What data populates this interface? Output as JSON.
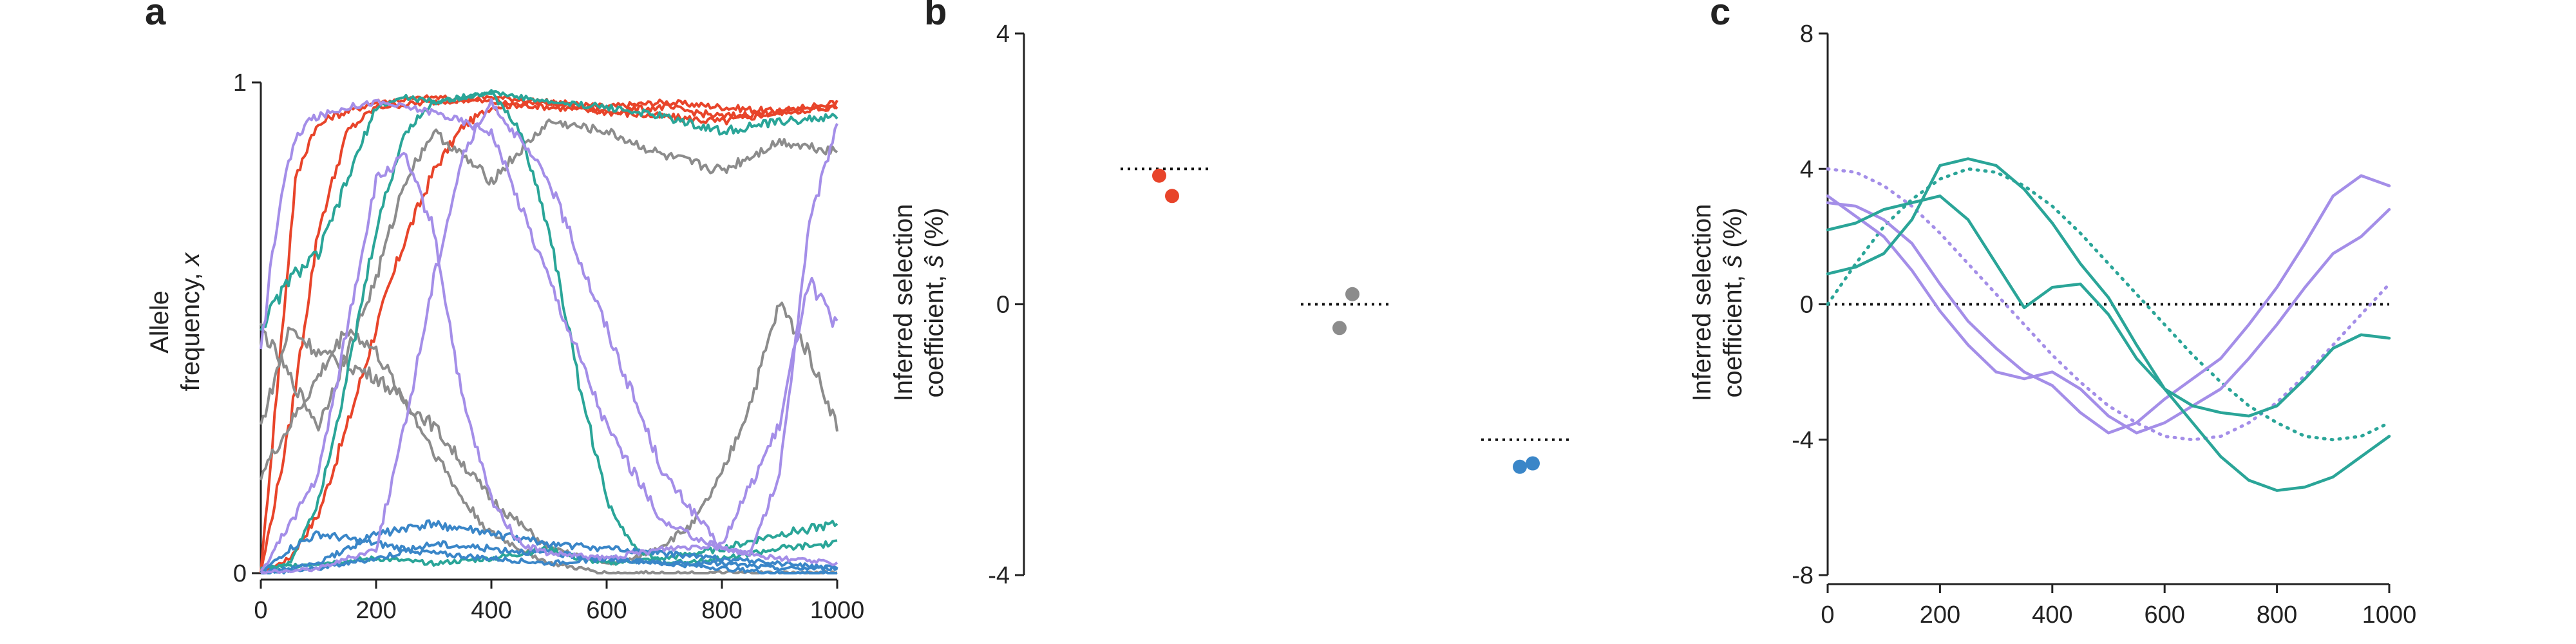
{
  "colors": {
    "red": "#e8442a",
    "gray": "#8c8c8c",
    "blue": "#3a86c8",
    "teal": "#2aa598",
    "purple": "#a48ee8",
    "axis": "#222222"
  },
  "chart_data": [
    {
      "panel": "a",
      "type": "line",
      "ylabel_lines": [
        "Allele",
        "frequency, "
      ],
      "ylabel_var": "x",
      "xlim": [
        0,
        1000
      ],
      "ylim": [
        0,
        1
      ],
      "xticks": [
        "0",
        "200",
        "400",
        "600",
        "800",
        "1000"
      ],
      "yticks": [
        "0",
        "1"
      ],
      "series": [
        {
          "color": "red",
          "x": [
            0,
            50,
            100,
            150,
            200,
            250,
            300,
            350,
            400,
            500,
            600,
            700,
            800,
            900,
            1000
          ],
          "y": [
            0.0,
            0.03,
            0.12,
            0.3,
            0.5,
            0.68,
            0.82,
            0.91,
            0.95,
            0.96,
            0.95,
            0.96,
            0.95,
            0.94,
            0.95
          ]
        },
        {
          "color": "red",
          "x": [
            0,
            30,
            60,
            90,
            120,
            150,
            200,
            300,
            400,
            500,
            600,
            700,
            800,
            900,
            1000
          ],
          "y": [
            0.0,
            0.4,
            0.8,
            0.9,
            0.93,
            0.94,
            0.96,
            0.97,
            0.96,
            0.95,
            0.94,
            0.93,
            0.92,
            0.94,
            0.95
          ]
        },
        {
          "color": "red",
          "x": [
            0,
            50,
            100,
            150,
            200,
            300,
            400,
            500,
            600,
            700,
            800,
            900,
            1000
          ],
          "y": [
            0.0,
            0.3,
            0.7,
            0.9,
            0.95,
            0.96,
            0.97,
            0.96,
            0.94,
            0.95,
            0.93,
            0.94,
            0.96
          ]
        },
        {
          "color": "gray",
          "x": [
            0,
            50,
            100,
            200,
            300,
            400,
            500,
            600,
            650,
            700,
            750,
            800,
            850,
            900,
            950,
            1000
          ],
          "y": [
            0.3,
            0.5,
            0.45,
            0.4,
            0.3,
            0.15,
            0.05,
            0.02,
            0.03,
            0.06,
            0.1,
            0.2,
            0.35,
            0.55,
            0.45,
            0.3
          ]
        },
        {
          "color": "gray",
          "x": [
            0,
            50,
            100,
            150,
            200,
            250,
            300,
            350,
            400,
            500,
            600,
            700,
            800,
            900,
            1000
          ],
          "y": [
            0.5,
            0.4,
            0.3,
            0.45,
            0.6,
            0.8,
            0.9,
            0.85,
            0.8,
            0.92,
            0.9,
            0.85,
            0.82,
            0.88,
            0.86
          ]
        },
        {
          "color": "gray",
          "x": [
            0,
            50,
            100,
            150,
            200,
            250,
            300,
            350,
            400,
            450,
            500,
            550,
            600
          ],
          "y": [
            0.2,
            0.3,
            0.4,
            0.5,
            0.45,
            0.35,
            0.25,
            0.15,
            0.08,
            0.05,
            0.02,
            0.01,
            0.0
          ]
        },
        {
          "color": "teal",
          "x": [
            0,
            50,
            100,
            150,
            200,
            250,
            300,
            400,
            450,
            500,
            550,
            600,
            650,
            700,
            800,
            900,
            1000
          ],
          "y": [
            0.5,
            0.6,
            0.65,
            0.8,
            0.95,
            0.97,
            0.96,
            0.98,
            0.9,
            0.7,
            0.4,
            0.15,
            0.05,
            0.02,
            0.03,
            0.05,
            0.06
          ]
        },
        {
          "color": "teal",
          "x": [
            0,
            50,
            100,
            150,
            200,
            250,
            300,
            400,
            500,
            600,
            650,
            700,
            800,
            900,
            1000
          ],
          "y": [
            0.0,
            0.02,
            0.15,
            0.4,
            0.7,
            0.9,
            0.96,
            0.98,
            0.96,
            0.95,
            0.94,
            0.93,
            0.9,
            0.92,
            0.93
          ]
        },
        {
          "color": "teal",
          "x": [
            0,
            100,
            200,
            300,
            400,
            500,
            550,
            600,
            700,
            800,
            900,
            1000
          ],
          "y": [
            0.01,
            0.02,
            0.03,
            0.02,
            0.03,
            0.05,
            0.03,
            0.02,
            0.03,
            0.05,
            0.08,
            0.1
          ]
        },
        {
          "color": "blue",
          "x": [
            0,
            100,
            150,
            200,
            300,
            400,
            500,
            600,
            700,
            800,
            900,
            1000
          ],
          "y": [
            0.0,
            0.02,
            0.05,
            0.08,
            0.1,
            0.08,
            0.06,
            0.05,
            0.04,
            0.03,
            0.02,
            0.01
          ]
        },
        {
          "color": "blue",
          "x": [
            0,
            100,
            200,
            300,
            400,
            500,
            600,
            700,
            800,
            900,
            1000
          ],
          "y": [
            0.0,
            0.01,
            0.03,
            0.06,
            0.05,
            0.04,
            0.03,
            0.02,
            0.02,
            0.01,
            0.01
          ]
        },
        {
          "color": "blue",
          "x": [
            0,
            50,
            100,
            200,
            300,
            400,
            500,
            600,
            700,
            800,
            900,
            1000
          ],
          "y": [
            0.0,
            0.05,
            0.08,
            0.06,
            0.04,
            0.03,
            0.02,
            0.03,
            0.02,
            0.01,
            0.0,
            0.0
          ]
        },
        {
          "color": "purple",
          "x": [
            0,
            20,
            40,
            60,
            80,
            100,
            150,
            200,
            250,
            300,
            400,
            500,
            600,
            700,
            800,
            900,
            1000
          ],
          "y": [
            0.45,
            0.65,
            0.8,
            0.88,
            0.92,
            0.93,
            0.95,
            0.96,
            0.95,
            0.94,
            0.9,
            0.6,
            0.3,
            0.1,
            0.05,
            0.03,
            0.02
          ]
        },
        {
          "color": "purple",
          "x": [
            0,
            100,
            150,
            200,
            250,
            300,
            350,
            400,
            450,
            500,
            600,
            700,
            800,
            900,
            950,
            1000
          ],
          "y": [
            0.0,
            0.2,
            0.5,
            0.8,
            0.85,
            0.7,
            0.35,
            0.15,
            0.06,
            0.04,
            0.03,
            0.05,
            0.06,
            0.3,
            0.6,
            0.5
          ]
        },
        {
          "color": "purple",
          "x": [
            0,
            100,
            200,
            250,
            300,
            350,
            400,
            500,
            600,
            700,
            800,
            850,
            900,
            950,
            1000
          ],
          "y": [
            0.0,
            0.01,
            0.05,
            0.3,
            0.6,
            0.85,
            0.96,
            0.8,
            0.5,
            0.2,
            0.05,
            0.04,
            0.2,
            0.7,
            0.92
          ]
        }
      ]
    },
    {
      "panel": "b",
      "type": "scatter",
      "ylabel_lines": [
        "Inferred selection",
        "coefficient, "
      ],
      "ylabel_var": "ŝ",
      "ylabel_suffix": " (%)",
      "ylim": [
        -4,
        4
      ],
      "yticks": [
        "4",
        "0",
        "-4"
      ],
      "groups": [
        {
          "color": "red",
          "true_value": 2.0,
          "points": [
            1.9,
            1.6
          ]
        },
        {
          "color": "gray",
          "true_value": 0.0,
          "points": [
            -0.35,
            0.15
          ]
        },
        {
          "color": "blue",
          "true_value": -2.0,
          "points": [
            -2.4,
            -2.35
          ]
        }
      ]
    },
    {
      "panel": "c",
      "type": "line",
      "ylabel_lines": [
        "Inferred selection",
        "coefficient, "
      ],
      "ylabel_var": "ŝ",
      "ylabel_suffix": " (%)",
      "xlim": [
        0,
        1000
      ],
      "ylim": [
        -8,
        8
      ],
      "xticks": [
        "0",
        "200",
        "400",
        "600",
        "800",
        "1000"
      ],
      "yticks": [
        "8",
        "4",
        "0",
        "-4",
        "-8"
      ],
      "zero_line": 0,
      "series": [
        {
          "color": "purple",
          "style": "dotted",
          "x": [
            0,
            50,
            100,
            150,
            200,
            250,
            300,
            350,
            400,
            450,
            500,
            550,
            600,
            650,
            700,
            750,
            800,
            850,
            900,
            950,
            1000
          ],
          "y": [
            4.0,
            3.9,
            3.5,
            2.9,
            2.1,
            1.2,
            0.3,
            -0.6,
            -1.5,
            -2.3,
            -3.0,
            -3.5,
            -3.9,
            -4.0,
            -3.9,
            -3.5,
            -2.9,
            -2.1,
            -1.2,
            -0.3,
            0.6
          ]
        },
        {
          "color": "teal",
          "style": "dotted",
          "x": [
            0,
            50,
            100,
            150,
            200,
            250,
            300,
            350,
            400,
            450,
            500,
            550,
            600,
            650,
            700,
            750,
            800,
            850,
            900,
            950,
            1000
          ],
          "y": [
            0.0,
            1.2,
            2.3,
            3.1,
            3.7,
            4.0,
            3.9,
            3.5,
            2.9,
            2.1,
            1.2,
            0.3,
            -0.6,
            -1.5,
            -2.3,
            -3.0,
            -3.5,
            -3.9,
            -4.0,
            -3.9,
            -3.5
          ]
        },
        {
          "color": "purple",
          "style": "solid",
          "x": [
            0,
            50,
            100,
            150,
            200,
            250,
            300,
            350,
            400,
            450,
            500,
            550,
            600,
            650,
            700,
            750,
            800,
            850,
            900,
            950,
            1000
          ],
          "y": [
            3.0,
            2.9,
            2.5,
            1.8,
            0.6,
            -0.5,
            -1.3,
            -2.0,
            -2.4,
            -3.2,
            -3.8,
            -3.5,
            -2.8,
            -2.2,
            -1.6,
            -0.6,
            0.5,
            1.8,
            3.2,
            3.8,
            3.5
          ]
        },
        {
          "color": "purple",
          "style": "solid",
          "x": [
            0,
            50,
            100,
            150,
            200,
            250,
            300,
            350,
            400,
            450,
            500,
            550,
            600,
            650,
            700,
            750,
            800,
            850,
            900,
            950,
            1000
          ],
          "y": [
            3.2,
            2.6,
            2.0,
            1.0,
            -0.2,
            -1.2,
            -2.0,
            -2.2,
            -2.0,
            -2.5,
            -3.3,
            -3.8,
            -3.5,
            -3.0,
            -2.5,
            -1.6,
            -0.6,
            0.5,
            1.5,
            2.0,
            2.8
          ]
        },
        {
          "color": "teal",
          "style": "solid",
          "x": [
            0,
            50,
            100,
            150,
            200,
            250,
            300,
            350,
            400,
            450,
            500,
            550,
            600,
            650,
            700,
            750,
            800,
            850,
            900,
            950,
            1000
          ],
          "y": [
            0.9,
            1.1,
            1.5,
            2.5,
            4.1,
            4.3,
            4.1,
            3.4,
            2.4,
            1.2,
            0.2,
            -1.2,
            -2.5,
            -3.5,
            -4.5,
            -5.2,
            -5.5,
            -5.4,
            -5.1,
            -4.5,
            -3.9
          ]
        },
        {
          "color": "teal",
          "style": "solid",
          "x": [
            0,
            50,
            100,
            150,
            200,
            250,
            300,
            350,
            400,
            450,
            500,
            550,
            600,
            650,
            700,
            750,
            800,
            850,
            900,
            950,
            1000
          ],
          "y": [
            2.2,
            2.4,
            2.8,
            3.0,
            3.2,
            2.5,
            1.2,
            -0.1,
            0.5,
            0.6,
            -0.3,
            -1.6,
            -2.5,
            -3.0,
            -3.2,
            -3.3,
            -3.0,
            -2.2,
            -1.3,
            -0.9,
            -1.0
          ]
        }
      ]
    }
  ]
}
